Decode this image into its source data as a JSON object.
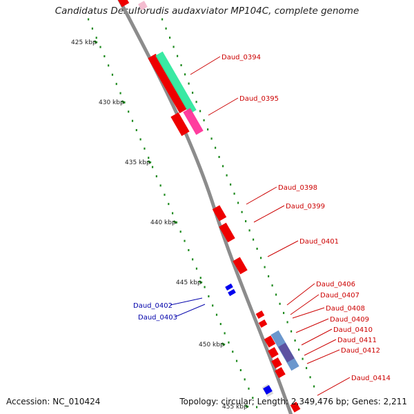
{
  "title": "Candidatus Desulforudis audaxviator MP104C, complete genome",
  "accession_text": "Accession: NC_010424",
  "summary_text": "Topology: circular; Length: 2,349,476 bp; Genes: 2,211",
  "colors": {
    "backbone": "#8c8c8c",
    "tick": "#1e8a1e",
    "forward_gene": "#ee0000",
    "reverse_gene": "#0000ee",
    "forward_label": "#cc0000",
    "reverse_label": "#0000aa",
    "feature_green": "#2fe89e",
    "feature_magenta": "#ff3399",
    "feature_blue": "#5b8cc8",
    "feature_purple": "#5b4a9c"
  },
  "scale_labels": [
    "425 kbp",
    "430 kbp",
    "435 kbp",
    "440 kbp",
    "445 kbp",
    "450 kbp",
    "455 kbp"
  ],
  "forward_gene_labels": [
    "Daud_0394",
    "Daud_0395",
    "Daud_0398",
    "Daud_0399",
    "Daud_0401",
    "Daud_0406",
    "Daud_0407",
    "Daud_0408",
    "Daud_0409",
    "Daud_0410",
    "Daud_0411",
    "Daud_0412",
    "Daud_0414"
  ],
  "reverse_gene_labels": [
    "Daud_0402",
    "Daud_0403"
  ]
}
